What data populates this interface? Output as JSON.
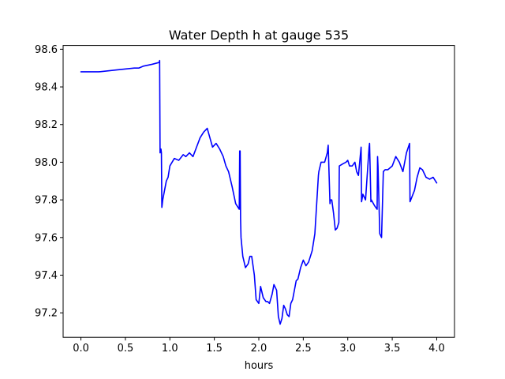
{
  "chart_data": {
    "type": "line",
    "title": "Water Depth h at gauge 535",
    "xlabel": "hours",
    "ylabel": "",
    "xlim": [
      -0.2,
      4.2
    ],
    "ylim": [
      97.07,
      98.62
    ],
    "grid": false,
    "xticks": [
      0.0,
      0.5,
      1.0,
      1.5,
      2.0,
      2.5,
      3.0,
      3.5,
      4.0
    ],
    "xtick_labels": [
      "0.0",
      "0.5",
      "1.0",
      "1.5",
      "2.0",
      "2.5",
      "3.0",
      "3.5",
      "4.0"
    ],
    "yticks": [
      97.2,
      97.4,
      97.6,
      97.8,
      98.0,
      98.2,
      98.4,
      98.6
    ],
    "ytick_labels": [
      "97.2",
      "97.4",
      "97.6",
      "97.8",
      "98.0",
      "98.2",
      "98.4",
      "98.6"
    ],
    "series": [
      {
        "color": "#0000ff",
        "x": [
          0.0,
          0.2,
          0.4,
          0.6,
          0.65,
          0.7,
          0.8,
          0.88,
          0.885,
          0.89,
          0.9,
          0.905,
          0.91,
          0.92,
          0.94,
          0.96,
          0.98,
          1.0,
          1.05,
          1.1,
          1.15,
          1.18,
          1.22,
          1.26,
          1.3,
          1.34,
          1.38,
          1.42,
          1.45,
          1.48,
          1.52,
          1.56,
          1.6,
          1.63,
          1.66,
          1.7,
          1.74,
          1.78,
          1.785,
          1.79,
          1.795,
          1.8,
          1.82,
          1.85,
          1.88,
          1.9,
          1.92,
          1.95,
          1.97,
          2.0,
          2.02,
          2.05,
          2.08,
          2.1,
          2.12,
          2.15,
          2.17,
          2.2,
          2.22,
          2.24,
          2.26,
          2.28,
          2.3,
          2.32,
          2.34,
          2.36,
          2.38,
          2.4,
          2.42,
          2.44,
          2.47,
          2.5,
          2.53,
          2.56,
          2.6,
          2.63,
          2.67,
          2.675,
          2.7,
          2.74,
          2.77,
          2.78,
          2.8,
          2.805,
          2.82,
          2.84,
          2.86,
          2.88,
          2.9,
          2.905,
          2.94,
          2.98,
          3.0,
          3.02,
          3.05,
          3.08,
          3.1,
          3.12,
          3.15,
          3.155,
          3.17,
          3.2,
          3.24,
          3.245,
          3.26,
          3.265,
          3.3,
          3.33,
          3.335,
          3.34,
          3.36,
          3.38,
          3.4,
          3.42,
          3.45,
          3.5,
          3.54,
          3.58,
          3.62,
          3.66,
          3.695,
          3.7,
          3.75,
          3.78,
          3.81,
          3.84,
          3.88,
          3.92,
          3.96,
          4.0
        ],
        "y": [
          98.48,
          98.48,
          98.49,
          98.5,
          98.5,
          98.51,
          98.52,
          98.53,
          98.54,
          98.05,
          98.07,
          98.05,
          97.76,
          97.8,
          97.85,
          97.9,
          97.92,
          97.98,
          98.02,
          98.01,
          98.04,
          98.03,
          98.05,
          98.03,
          98.08,
          98.13,
          98.16,
          98.18,
          98.13,
          98.08,
          98.1,
          98.07,
          98.03,
          97.98,
          97.95,
          97.87,
          97.78,
          97.75,
          98.06,
          98.06,
          97.7,
          97.6,
          97.5,
          97.44,
          97.46,
          97.5,
          97.5,
          97.4,
          97.27,
          97.25,
          97.34,
          97.28,
          97.26,
          97.26,
          97.25,
          97.3,
          97.35,
          97.32,
          97.18,
          97.14,
          97.17,
          97.24,
          97.22,
          97.19,
          97.18,
          97.25,
          97.27,
          97.32,
          97.37,
          97.38,
          97.44,
          97.48,
          97.45,
          97.47,
          97.53,
          97.62,
          97.93,
          97.95,
          98.0,
          98.0,
          98.05,
          98.09,
          97.78,
          97.8,
          97.8,
          97.73,
          97.64,
          97.65,
          97.68,
          97.98,
          97.99,
          98.0,
          98.01,
          97.98,
          97.98,
          98.0,
          97.95,
          97.93,
          98.08,
          97.79,
          97.83,
          97.8,
          98.08,
          98.1,
          97.79,
          97.8,
          97.77,
          97.75,
          98.03,
          97.98,
          97.62,
          97.6,
          97.95,
          97.96,
          97.96,
          97.98,
          98.03,
          98.0,
          97.95,
          98.05,
          98.1,
          97.79,
          97.85,
          97.92,
          97.97,
          97.96,
          97.92,
          97.91,
          97.92,
          97.89
        ]
      }
    ]
  }
}
